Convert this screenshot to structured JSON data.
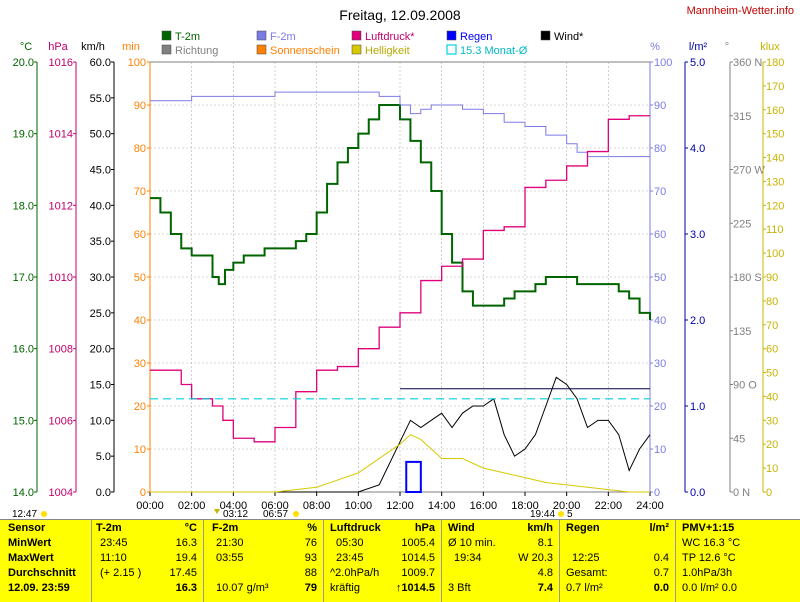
{
  "title": "Freitag, 12.09.2008",
  "site": "Mannheim-Wetter.info",
  "legend": [
    {
      "name": "T-2m",
      "color": "#006400"
    },
    {
      "name": "Richtung",
      "color": "#808080"
    },
    {
      "name": "F-2m",
      "color": "#7b7be6"
    },
    {
      "name": "Sonnenschein",
      "color": "#ff8000"
    },
    {
      "name": "Luftdruck*",
      "color": "#e0007a"
    },
    {
      "name": "Helligkeit",
      "color": "#d8c800"
    },
    {
      "name": "Regen",
      "color": "#0000ff"
    },
    {
      "name": "15.3 Monat-Ø",
      "color": "#00d0e0"
    },
    {
      "name": "Wind*",
      "color": "#000000"
    }
  ],
  "axis_units": {
    "temp": "°C",
    "pressure": "hPa",
    "wind": "km/h",
    "sun": "min",
    "humidity": "%",
    "rain": "l/m²",
    "direction": "°",
    "light": "klux"
  },
  "left_axes": {
    "temp": [
      "20.0",
      "19.0",
      "18.0",
      "17.0",
      "16.0",
      "15.0",
      "14.0"
    ],
    "pressure": [
      "1016",
      "1014",
      "1012",
      "1010",
      "1008",
      "1006",
      "1004"
    ],
    "wind": [
      "60.0",
      "55.0",
      "50.0",
      "45.0",
      "40.0",
      "35.0",
      "30.0",
      "25.0",
      "20.0",
      "15.0",
      "10.0",
      "5.0",
      "0.0"
    ],
    "sun": [
      "100",
      "90",
      "80",
      "70",
      "60",
      "50",
      "40",
      "30",
      "20",
      "10",
      "0"
    ]
  },
  "right_axes": {
    "humidity": [
      "100",
      "90",
      "80",
      "70",
      "60",
      "50",
      "40",
      "30",
      "20",
      "10",
      "0"
    ],
    "rain": [
      "5.0",
      "4.0",
      "3.0",
      "2.0",
      "1.0",
      "0.0"
    ],
    "direction": [
      "360 N",
      "315",
      "270 W",
      "225",
      "180 S",
      "135",
      "90 O",
      "45",
      "0 N"
    ],
    "light": [
      "180",
      "170",
      "160",
      "150",
      "140",
      "130",
      "120",
      "110",
      "100",
      "90",
      "80",
      "70",
      "60",
      "50",
      "40",
      "30",
      "20",
      "10",
      "0"
    ]
  },
  "x_ticks": [
    "00:00",
    "02:00",
    "04:00",
    "06:00",
    "08:00",
    "10:00",
    "12:00",
    "14:00",
    "16:00",
    "18:00",
    "20:00",
    "22:00",
    "24:00"
  ],
  "sun_events": {
    "sunrise_label": "03:12",
    "sunrise2_label": "06:57",
    "left_label": "12:47",
    "sunset_label": "19:44",
    "sunset2_label": "5"
  },
  "table": {
    "sensor": {
      "h": "Sensor",
      "r1": "MinWert",
      "r2": "MaxWert",
      "r3": "Durchschnitt",
      "r4": "12.09. 23:59"
    },
    "t2m": {
      "h": "T-2m",
      "u": "°C",
      "r1a": "23:45",
      "r1b": "16.3",
      "r2a": "11:10",
      "r2b": "19.4",
      "r3a": "(+ 2.15 )",
      "r3b": "17.45",
      "r4b": "16.3"
    },
    "f2m": {
      "h": "F-2m",
      "u": "%",
      "r1a": "21:30",
      "r1b": "76",
      "r2a": "03:55",
      "r2b": "93",
      "r3b": "88",
      "r4a": "10.07 g/m³",
      "r4b": "79"
    },
    "druck": {
      "h": "Luftdruck",
      "u": "hPa",
      "r1a": "05:30",
      "r1b": "1005.4",
      "r2a": "23:45",
      "r2b": "1014.5",
      "r3a": "^2.0hPa/h",
      "r3b": "1009.7",
      "r4a": "kräftig",
      "r4b": "↑1014.5"
    },
    "wind": {
      "h": "Wind",
      "u": "km/h",
      "r1a": "Ø 10 min.",
      "r1b": "8.1",
      "r2a": "19:34",
      "r2b": "W 20.3",
      "r3b": "4.8",
      "r4a": "3 Bft",
      "r4b": "7.4"
    },
    "regen": {
      "h": "Regen",
      "u": "l/m²",
      "r2a": "12:25",
      "r2b": "0.4",
      "r3a": "Gesamt:",
      "r3b": "0.7",
      "r4a": "0.7 l/m²",
      "r4b": "0.0"
    },
    "pmv": {
      "h": "PMV+1:15",
      "r1": "WC 16.3 °C",
      "r2": "TP 12.6 °C",
      "r3": "1.0hPa/3h",
      "r4": "0.0 l/m² 0.0"
    }
  },
  "chart_data": {
    "type": "line",
    "title": "Freitag, 12.09.2008",
    "x_unit": "hours",
    "xlim": [
      0,
      24
    ],
    "grid": true,
    "series": [
      {
        "name": "T-2m",
        "unit": "°C",
        "ylim": [
          14,
          20
        ],
        "x": [
          0,
          0.5,
          1,
          1.5,
          2,
          2.5,
          3,
          3.3,
          3.6,
          4,
          4.5,
          5,
          5.5,
          6,
          6.5,
          7,
          7.5,
          8,
          8.5,
          9,
          9.5,
          10,
          10.5,
          11,
          11.2,
          11.5,
          12,
          12.5,
          13,
          13.5,
          14,
          14.5,
          15,
          15.5,
          16,
          16.5,
          17,
          17.5,
          18,
          18.5,
          19,
          19.5,
          20,
          20.5,
          21,
          21.5,
          22,
          22.5,
          23,
          23.5,
          24
        ],
        "y": [
          18.1,
          17.9,
          17.6,
          17.4,
          17.3,
          17.3,
          17.0,
          16.9,
          17.1,
          17.2,
          17.3,
          17.3,
          17.4,
          17.4,
          17.4,
          17.5,
          17.6,
          17.9,
          18.3,
          18.6,
          18.8,
          19.0,
          19.2,
          19.4,
          19.4,
          19.4,
          19.2,
          18.9,
          18.6,
          18.2,
          17.6,
          17.2,
          16.8,
          16.6,
          16.6,
          16.6,
          16.7,
          16.8,
          16.8,
          16.9,
          17.0,
          17.0,
          17.0,
          16.9,
          16.9,
          16.9,
          16.9,
          16.8,
          16.7,
          16.5,
          16.4
        ]
      },
      {
        "name": "F-2m",
        "unit": "%",
        "ylim": [
          0,
          100
        ],
        "x": [
          0,
          2,
          4,
          5,
          6,
          8,
          10,
          11,
          12,
          12.5,
          13,
          13.5,
          14,
          15,
          16,
          17,
          18,
          19,
          20,
          20.5,
          21,
          22,
          23,
          24
        ],
        "y": [
          91,
          92,
          92,
          92,
          93,
          93,
          93,
          92,
          90,
          88,
          89,
          90,
          90,
          89,
          88,
          86,
          85,
          83,
          81,
          79,
          78,
          78,
          78,
          78
        ]
      },
      {
        "name": "Luftdruck*",
        "unit": "hPa",
        "ylim": [
          1004,
          1016
        ],
        "x": [
          0,
          1,
          1.5,
          2,
          3,
          3.5,
          4,
          5,
          5.5,
          6,
          7,
          8,
          9,
          10,
          11,
          12,
          13,
          14,
          15,
          16,
          17,
          18,
          19,
          20,
          21,
          22,
          23,
          24
        ],
        "y": [
          1007.4,
          1007.4,
          1007.0,
          1006.6,
          1006.4,
          1006.0,
          1005.5,
          1005.4,
          1005.4,
          1005.8,
          1006.8,
          1007.4,
          1007.5,
          1008.0,
          1008.6,
          1009.0,
          1009.9,
          1010.3,
          1010.5,
          1011.3,
          1011.4,
          1012.5,
          1012.7,
          1013.1,
          1013.5,
          1014.4,
          1014.5,
          1014.5
        ]
      },
      {
        "name": "Wind*",
        "unit": "km/h",
        "ylim": [
          0,
          60
        ],
        "x": [
          0,
          9,
          10,
          11,
          12,
          12.5,
          13,
          13.5,
          14,
          14.5,
          15,
          15.5,
          16,
          16.5,
          17,
          17.5,
          18,
          18.5,
          19,
          19.5,
          20,
          20.5,
          21,
          21.5,
          22,
          22.5,
          23,
          23.5,
          24
        ],
        "y": [
          0,
          0,
          0,
          1,
          7,
          10,
          9,
          10,
          11,
          9,
          11,
          12,
          12,
          13,
          8,
          5,
          6,
          8,
          12,
          16,
          15,
          13,
          9,
          10,
          10,
          8,
          3,
          6,
          8
        ]
      },
      {
        "name": "Helligkeit",
        "unit": "klux",
        "ylim": [
          0,
          180
        ],
        "x": [
          0,
          5,
          6,
          7,
          8,
          9,
          10,
          11,
          12,
          12.5,
          13,
          13.5,
          14,
          15,
          16,
          17,
          18,
          19,
          20,
          21,
          22,
          23,
          24
        ],
        "y": [
          0,
          0,
          0,
          1,
          2,
          5,
          8,
          14,
          20,
          24,
          22,
          18,
          14,
          14,
          10,
          8,
          6,
          4,
          3,
          2,
          1,
          0,
          0
        ]
      },
      {
        "name": "Regen",
        "unit": "l/m²",
        "ylim": [
          0,
          5
        ],
        "x": [
          12.3,
          12.5,
          12.8,
          13.0
        ],
        "y": [
          0.3,
          0.35,
          0.35,
          0.0
        ]
      },
      {
        "name": "15.3 Monat-Ø",
        "unit": "°C",
        "ylim": [
          14,
          20
        ],
        "x": [
          0,
          24
        ],
        "y": [
          15.3,
          15.3
        ]
      }
    ]
  }
}
